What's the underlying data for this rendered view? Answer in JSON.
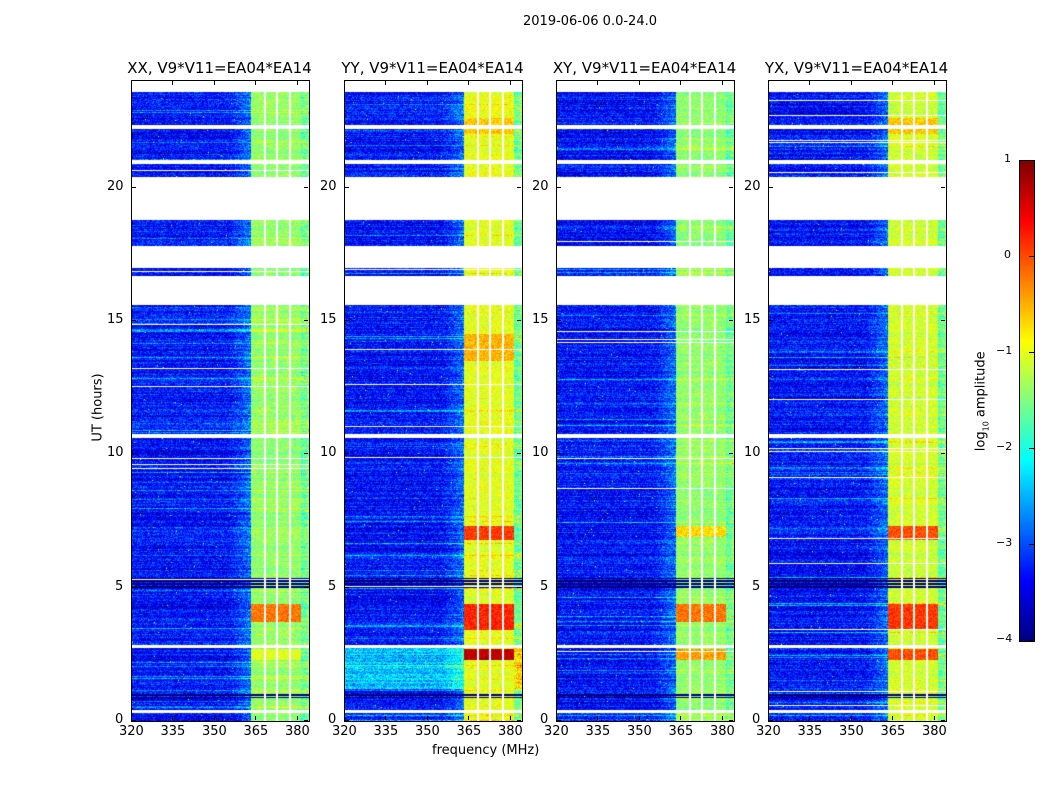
{
  "chart_data": {
    "type": "heatmap",
    "title": "2019-06-06 0.0-24.0",
    "xlabel": "frequency (MHz)",
    "ylabel": "UT (hours)",
    "xlim": [
      320,
      384
    ],
    "ylim": [
      0,
      24
    ],
    "xticks": [
      "320",
      "335",
      "350",
      "365",
      "380"
    ],
    "yticks": [
      "0",
      "5",
      "10",
      "15",
      "20"
    ],
    "colorbar": {
      "label": "log10 amplitude",
      "label_main": "log",
      "label_sub": "10",
      "label_rest": " amplitude",
      "range": [
        -4,
        1
      ],
      "ticks": [
        "1",
        "0",
        "−1",
        "−2",
        "−3",
        "−4"
      ],
      "colormap": "jet"
    },
    "data_extent_hours": [
      0,
      23.6
    ],
    "flagged_hours": [
      [
        18.8,
        20.4
      ],
      [
        17.0,
        17.8
      ],
      [
        15.6,
        16.7
      ],
      [
        10.6,
        10.75
      ],
      [
        22.2,
        22.35
      ],
      [
        20.9,
        21.05
      ],
      [
        2.75,
        2.85
      ],
      [
        0.3,
        0.4
      ]
    ],
    "dark_hours": [
      [
        4.95,
        5.35
      ],
      [
        0.85,
        1.05
      ]
    ],
    "band_mhz": [
      363,
      381
    ],
    "band_gaps_mhz": [
      368,
      372.5,
      377
    ],
    "baseline_log_amp": -3.3,
    "panels": [
      {
        "title": "XX, V9*V11=EA04*EA14",
        "band_level": -1.4,
        "hotspots": [
          [
            3.7,
            4.4,
            -0.2
          ],
          [
            2.3,
            2.7,
            -1.0
          ]
        ]
      },
      {
        "title": "YY, V9*V11=EA04*EA14",
        "band_level": -1.0,
        "hotspots": [
          [
            2.3,
            2.7,
            0.7
          ],
          [
            3.4,
            4.4,
            0.2
          ],
          [
            6.8,
            7.3,
            0.1
          ],
          [
            13.5,
            14.5,
            -0.5
          ],
          [
            22.0,
            22.6,
            -0.6
          ]
        ]
      },
      {
        "title": "XY, V9*V11=EA04*EA14",
        "band_level": -1.4,
        "hotspots": [
          [
            3.7,
            4.4,
            -0.2
          ],
          [
            2.3,
            2.7,
            -0.4
          ],
          [
            6.9,
            7.3,
            -0.7
          ]
        ]
      },
      {
        "title": "YX, V9*V11=EA04*EA14",
        "band_level": -1.1,
        "hotspots": [
          [
            2.3,
            2.7,
            0.0
          ],
          [
            3.4,
            4.4,
            0.1
          ],
          [
            6.8,
            7.3,
            0.0
          ],
          [
            22.0,
            22.6,
            -0.6
          ]
        ]
      }
    ]
  }
}
